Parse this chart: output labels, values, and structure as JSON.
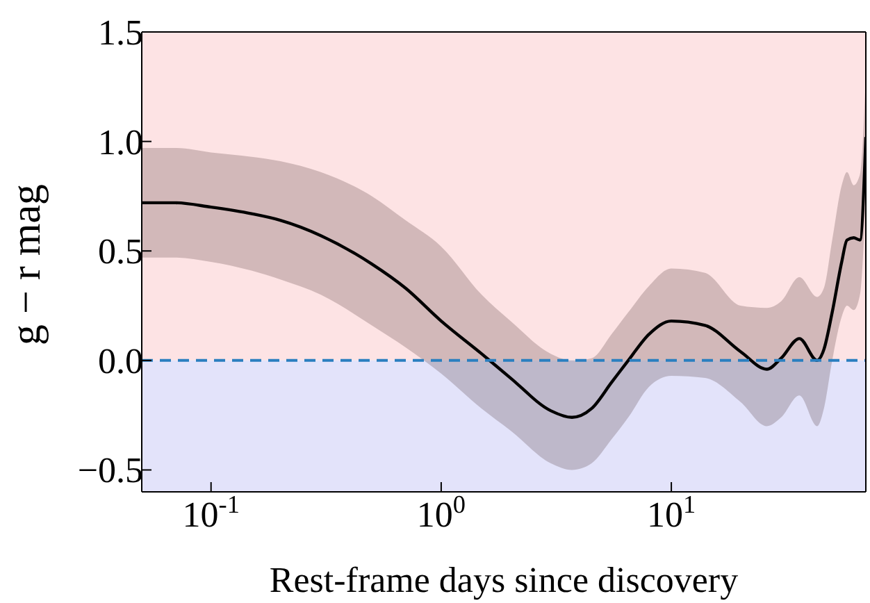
{
  "chart_data": {
    "type": "line",
    "xlabel": "Rest-frame days since discovery",
    "ylabel": "g − r mag",
    "log": "x",
    "marker": "none",
    "line_style": "solid",
    "x": [
      0.05,
      0.07,
      0.1,
      0.15,
      0.2,
      0.3,
      0.5,
      0.7,
      1.0,
      1.5,
      2,
      3,
      3.7,
      4.5,
      5.5,
      6.5,
      8,
      10,
      14,
      20,
      26,
      30,
      36,
      43,
      46,
      50,
      55,
      58,
      62,
      66,
      70
    ],
    "series": [
      {
        "color": "#000000",
        "values": [
          0.72,
          0.72,
          0.7,
          0.67,
          0.64,
          0.57,
          0.44,
          0.33,
          0.18,
          0.03,
          -0.08,
          -0.23,
          -0.26,
          -0.22,
          -0.1,
          0.0,
          0.12,
          0.18,
          0.16,
          0.04,
          -0.04,
          0.01,
          0.1,
          0.0,
          0.05,
          0.22,
          0.45,
          0.55,
          0.56,
          0.55,
          1.02
        ],
        "lower": [
          0.47,
          0.47,
          0.45,
          0.41,
          0.37,
          0.3,
          0.16,
          0.06,
          -0.06,
          -0.22,
          -0.32,
          -0.47,
          -0.5,
          -0.47,
          -0.36,
          -0.26,
          -0.12,
          -0.07,
          -0.08,
          -0.19,
          -0.3,
          -0.26,
          -0.16,
          -0.3,
          -0.22,
          0.0,
          0.2,
          0.25,
          0.23,
          0.3,
          0.75
        ],
        "upper": [
          0.97,
          0.97,
          0.95,
          0.93,
          0.91,
          0.86,
          0.75,
          0.64,
          0.52,
          0.3,
          0.18,
          0.03,
          0.0,
          0.01,
          0.12,
          0.22,
          0.34,
          0.42,
          0.4,
          0.25,
          0.24,
          0.27,
          0.38,
          0.29,
          0.33,
          0.55,
          0.8,
          0.86,
          0.8,
          0.85,
          1.3
        ]
      }
    ],
    "xlim": [
      0.05,
      70
    ],
    "xticks": [
      {
        "value": 0.1,
        "label": "10$^{-1}$"
      },
      {
        "value": 1,
        "label": "10$^{0}$"
      },
      {
        "value": 10,
        "label": "10$^{1}$"
      }
    ],
    "ylim": [
      -0.6,
      1.5
    ],
    "yticks": [
      {
        "value": -0.5,
        "label": "−0.5"
      },
      {
        "value": 0,
        "label": "0.0"
      },
      {
        "value": 0.5,
        "label": "0.5"
      },
      {
        "value": 1,
        "label": "1.0"
      },
      {
        "value": 1.5,
        "label": "1.5"
      }
    ],
    "bands": [
      {
        "axis": "y",
        "from": 0,
        "to": 1.5,
        "color": "#fde3e4"
      },
      {
        "axis": "y",
        "from": -0.6,
        "to": 0,
        "color": "#e3e3fa"
      }
    ],
    "ref_lines": [
      {
        "axis": "y",
        "value": 0,
        "color": "#2a7fc0",
        "line_style": "dashed"
      }
    ]
  }
}
